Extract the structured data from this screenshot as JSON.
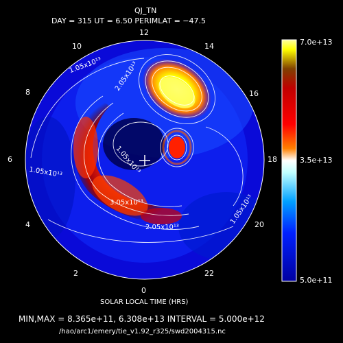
{
  "chart_data": {
    "type": "heatmap",
    "projection": "polar",
    "title": "QJ_TN",
    "subtitle": "DAY = 315   UT =  6.50   PERIMLAT = −47.5",
    "xlabel": "SOLAR LOCAL TIME (HRS)",
    "local_time_ticks": [
      "0",
      "2",
      "4",
      "6",
      "8",
      "10",
      "12",
      "14",
      "16",
      "18",
      "20",
      "22"
    ],
    "colorbar": {
      "labels": [
        "7.0e+13",
        "3.5e+13",
        "5.0e+11"
      ],
      "range": [
        500000000000.0,
        70000000000000.0
      ],
      "colors": [
        "#0000a0",
        "#0020ff",
        "#00a0ff",
        "#a0ffff",
        "#ffffff",
        "#ffff80",
        "#ffff00",
        "#ff8000",
        "#ff0000",
        "#a00000",
        "#600000"
      ]
    },
    "contour_labels": [
      "1.05x10¹³",
      "2.05x10¹³",
      "3.05x10¹³"
    ],
    "footer": "MIN,MAX =  8.365e+11, 6.308e+13 INTERVAL =  5.000e+12",
    "file": "/hao/arc1/emery/tie_v1.92_r325/swd2004315.nc"
  }
}
